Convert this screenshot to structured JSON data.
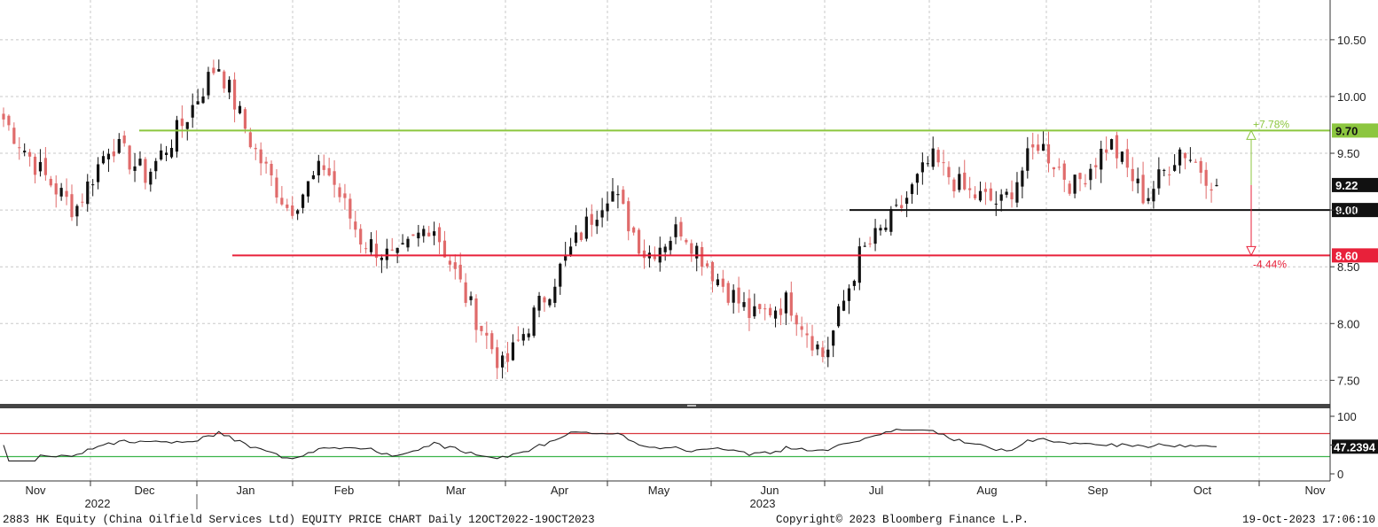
{
  "chart_data": [
    {
      "type": "candlestick",
      "panel": "price",
      "ylim": [
        7.3,
        10.85
      ],
      "y_ticks": [
        "10.50",
        "10.00",
        "9.50",
        "9.00",
        "8.50",
        "8.00",
        "7.50"
      ],
      "x_months": [
        "Nov",
        "Dec",
        "Jan",
        "Feb",
        "Mar",
        "Apr",
        "May",
        "Jun",
        "Jul",
        "Aug",
        "Sep",
        "Oct",
        "Nov"
      ],
      "x_years": [
        "2022",
        "2023"
      ],
      "grid": true,
      "up_color": "#111111",
      "down_color": "#e06b6b",
      "anchor_closes": [
        9.8,
        9.35,
        9.0,
        9.6,
        9.3,
        9.75,
        10.3,
        9.55,
        9.0,
        9.4,
        8.75,
        8.55,
        8.9,
        8.2,
        7.6,
        8.15,
        8.7,
        9.2,
        8.6,
        8.85,
        8.4,
        8.05,
        8.2,
        7.7,
        8.6,
        8.95,
        9.45,
        9.15,
        9.05,
        9.6,
        9.2,
        9.6,
        9.1,
        9.55,
        9.22
      ],
      "reference_lines": [
        {
          "value": 9.7,
          "label": "9.70",
          "color": "#8cc63f",
          "pct_label": "+7.78%"
        },
        {
          "value": 9.0,
          "label": "9.00",
          "color": "#111111"
        },
        {
          "value": 8.6,
          "label": "8.60",
          "color": "#e8213a",
          "pct_label": "-4.44%"
        }
      ],
      "last_price": {
        "value": 9.22,
        "label": "9.22"
      }
    },
    {
      "type": "line",
      "panel": "rsi",
      "ylim": [
        0,
        100
      ],
      "y_ticks": [
        "100",
        "50",
        "0"
      ],
      "overbought": 70,
      "oversold": 30,
      "overbought_color": "#d9363e",
      "oversold_color": "#3cb44b",
      "last_value": {
        "value": 47.2394,
        "label": "47.2394"
      }
    }
  ],
  "footer": {
    "left": "2883 HK Equity (China Oilfield Services Ltd) EQUITY PRICE CHART  Daily 12OCT2022-19OCT2023",
    "center": "Copyright© 2023 Bloomberg Finance L.P.",
    "right": "19-Oct-2023 17:06:10"
  }
}
